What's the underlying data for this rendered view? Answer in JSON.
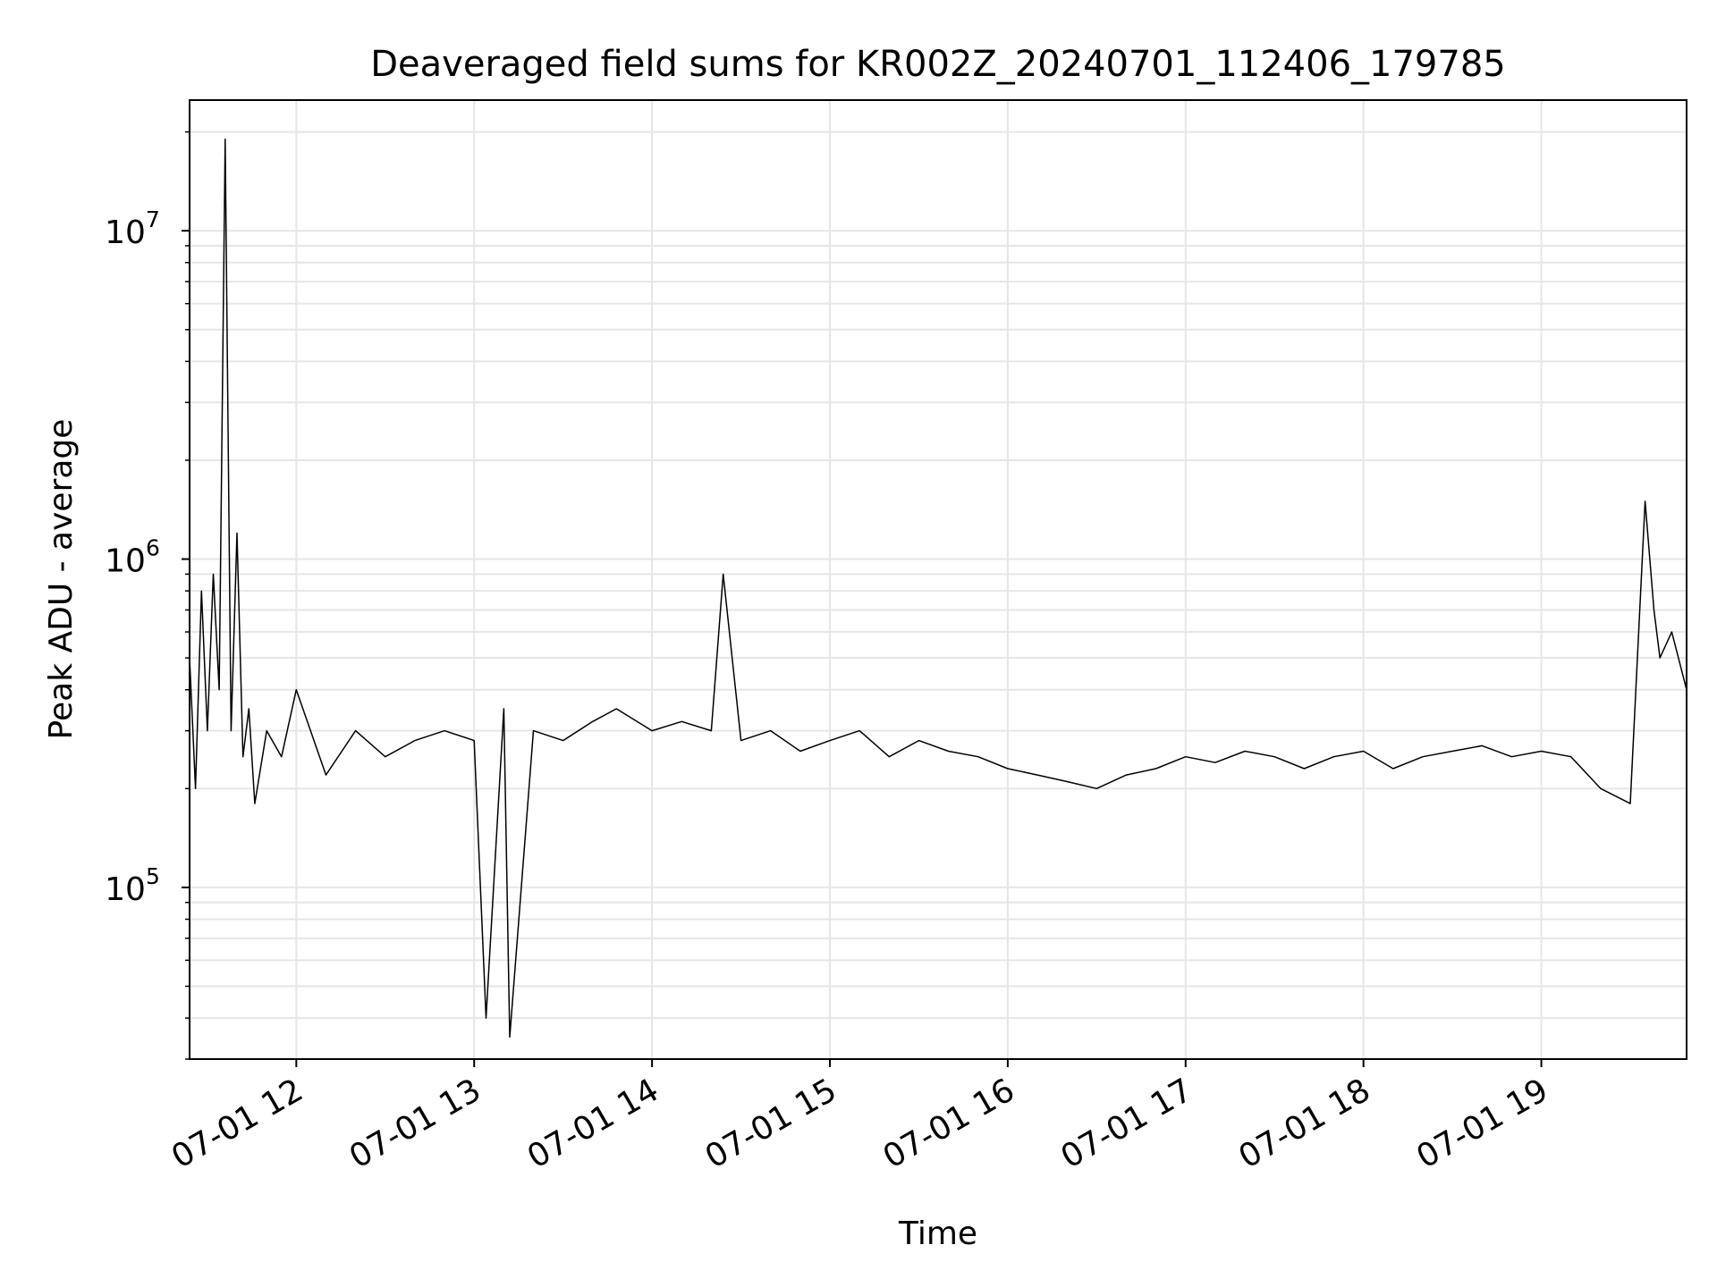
{
  "chart_data": {
    "type": "line",
    "title": "Deaveraged field sums for KR002Z_20240701_112406_179785",
    "xlabel": "Time",
    "ylabel": "Peak ADU - average",
    "yscale": "log",
    "ylim": [
      30000,
      25000000
    ],
    "xlim": [
      "2024-07-01 11:24",
      "2024-07-01 19:49"
    ],
    "x_ticks": [
      "07-01 12",
      "07-01 13",
      "07-01 14",
      "07-01 15",
      "07-01 16",
      "07-01 17",
      "07-01 18",
      "07-01 19"
    ],
    "y_ticks": [
      {
        "base": "10",
        "exp": "5",
        "value": 100000
      },
      {
        "base": "10",
        "exp": "6",
        "value": 1000000
      },
      {
        "base": "10",
        "exp": "7",
        "value": 10000000
      }
    ],
    "grid": true,
    "line_color": "#000000",
    "grid_color": "#e6e6e6",
    "series": [
      {
        "x": [
          "2024-07-01 11:24",
          "2024-07-01 11:26",
          "2024-07-01 11:28",
          "2024-07-01 11:30",
          "2024-07-01 11:32",
          "2024-07-01 11:34",
          "2024-07-01 11:36",
          "2024-07-01 11:38",
          "2024-07-01 11:40",
          "2024-07-01 11:42",
          "2024-07-01 11:44",
          "2024-07-01 11:46",
          "2024-07-01 11:50",
          "2024-07-01 11:55",
          "2024-07-01 12:00",
          "2024-07-01 12:10",
          "2024-07-01 12:20",
          "2024-07-01 12:30",
          "2024-07-01 12:40",
          "2024-07-01 12:50",
          "2024-07-01 13:00",
          "2024-07-01 13:04",
          "2024-07-01 13:10",
          "2024-07-01 13:12",
          "2024-07-01 13:20",
          "2024-07-01 13:30",
          "2024-07-01 13:40",
          "2024-07-01 13:48",
          "2024-07-01 14:00",
          "2024-07-01 14:10",
          "2024-07-01 14:20",
          "2024-07-01 14:24",
          "2024-07-01 14:30",
          "2024-07-01 14:40",
          "2024-07-01 14:50",
          "2024-07-01 15:00",
          "2024-07-01 15:10",
          "2024-07-01 15:20",
          "2024-07-01 15:30",
          "2024-07-01 15:40",
          "2024-07-01 15:50",
          "2024-07-01 16:00",
          "2024-07-01 16:10",
          "2024-07-01 16:20",
          "2024-07-01 16:30",
          "2024-07-01 16:40",
          "2024-07-01 16:50",
          "2024-07-01 17:00",
          "2024-07-01 17:10",
          "2024-07-01 17:20",
          "2024-07-01 17:30",
          "2024-07-01 17:40",
          "2024-07-01 17:50",
          "2024-07-01 18:00",
          "2024-07-01 18:10",
          "2024-07-01 18:20",
          "2024-07-01 18:30",
          "2024-07-01 18:40",
          "2024-07-01 18:50",
          "2024-07-01 19:00",
          "2024-07-01 19:10",
          "2024-07-01 19:20",
          "2024-07-01 19:30",
          "2024-07-01 19:35",
          "2024-07-01 19:38",
          "2024-07-01 19:40",
          "2024-07-01 19:44",
          "2024-07-01 19:49"
        ],
        "values": [
          500000,
          200000,
          800000,
          300000,
          900000,
          400000,
          19000000,
          300000,
          1200000,
          250000,
          350000,
          180000,
          300000,
          250000,
          400000,
          220000,
          300000,
          250000,
          280000,
          300000,
          280000,
          40000,
          350000,
          35000,
          300000,
          280000,
          320000,
          350000,
          300000,
          320000,
          300000,
          900000,
          280000,
          300000,
          260000,
          280000,
          300000,
          250000,
          280000,
          260000,
          250000,
          230000,
          220000,
          210000,
          200000,
          220000,
          230000,
          250000,
          240000,
          260000,
          250000,
          230000,
          250000,
          260000,
          230000,
          250000,
          260000,
          270000,
          250000,
          260000,
          250000,
          200000,
          180000,
          1500000,
          700000,
          500000,
          600000,
          400000
        ]
      }
    ]
  }
}
